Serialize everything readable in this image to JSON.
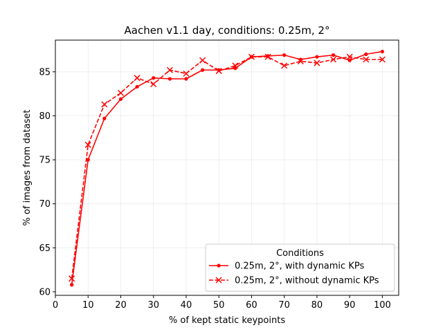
{
  "chart_data": {
    "type": "line",
    "title": "Aachen v1.1 day, conditions: 0.25m, 2°",
    "xlabel": "% of kept static keypoints",
    "ylabel": "% of images from dataset",
    "xlim": [
      0,
      105
    ],
    "ylim": [
      59.6,
      88.6
    ],
    "xticks": [
      0,
      10,
      20,
      30,
      40,
      50,
      60,
      70,
      80,
      90,
      100
    ],
    "yticks": [
      60,
      65,
      70,
      75,
      80,
      85
    ],
    "grid": true,
    "legend": {
      "title": "Conditions",
      "placement": "lower-right"
    },
    "series": [
      {
        "name": "0.25m, 2°, with dynamic KPs",
        "color": "#ff0000",
        "linestyle": "solid",
        "marker": "dot",
        "x": [
          5,
          10,
          15,
          20,
          25,
          30,
          35,
          40,
          45,
          50,
          55,
          60,
          65,
          70,
          75,
          80,
          85,
          90,
          95,
          100
        ],
        "y": [
          60.8,
          75.0,
          79.7,
          81.9,
          83.3,
          84.3,
          84.2,
          84.2,
          85.2,
          85.2,
          85.4,
          86.7,
          86.8,
          86.9,
          86.4,
          86.7,
          86.9,
          86.3,
          87.0,
          87.3
        ]
      },
      {
        "name": "0.25m, 2°, without dynamic KPs",
        "color": "#ff0000",
        "linestyle": "dashed",
        "marker": "x",
        "x": [
          5,
          10,
          15,
          20,
          25,
          30,
          35,
          40,
          45,
          50,
          55,
          60,
          65,
          70,
          75,
          80,
          85,
          90,
          95,
          100
        ],
        "y": [
          61.5,
          76.7,
          81.3,
          82.6,
          84.3,
          83.6,
          85.2,
          84.8,
          86.3,
          85.1,
          85.7,
          86.7,
          86.7,
          85.7,
          86.2,
          86.0,
          86.4,
          86.7,
          86.4,
          86.4
        ]
      }
    ]
  }
}
